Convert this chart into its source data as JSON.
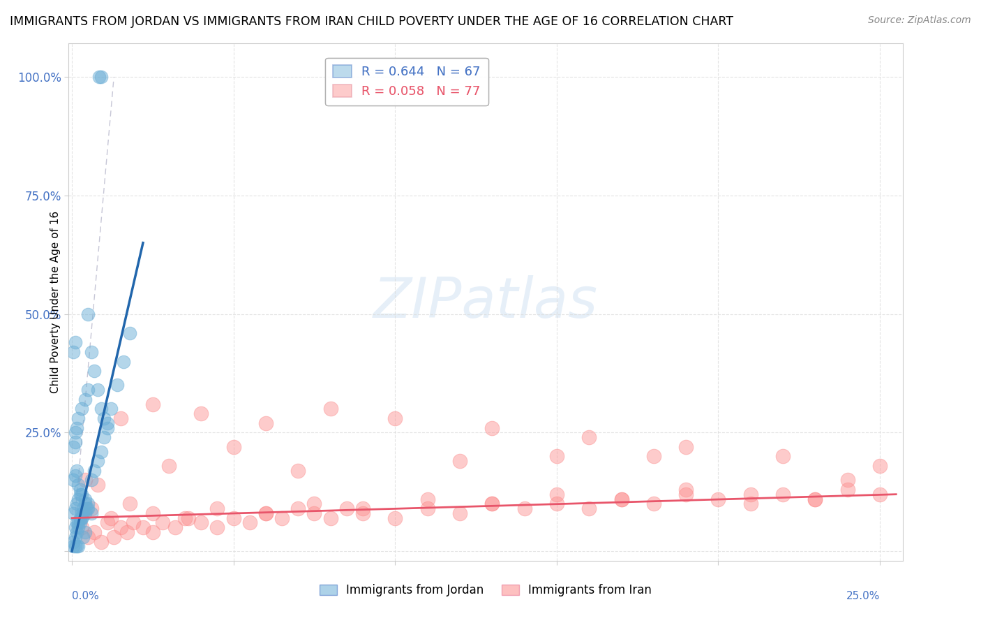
{
  "title": "IMMIGRANTS FROM JORDAN VS IMMIGRANTS FROM IRAN CHILD POVERTY UNDER THE AGE OF 16 CORRELATION CHART",
  "source": "Source: ZipAtlas.com",
  "ylabel": "Child Poverty Under the Age of 16",
  "jordan_color": "#6baed6",
  "iran_color": "#fc8d8d",
  "jordan_line_color": "#2166ac",
  "iran_line_color": "#e8556a",
  "jordan_R": 0.644,
  "jordan_N": 67,
  "iran_R": 0.058,
  "iran_N": 77,
  "legend_label_jordan": "Immigrants from Jordan",
  "legend_label_iran": "Immigrants from Iran",
  "watermark": "ZIPatlas",
  "xlim": [
    -0.001,
    0.257
  ],
  "ylim": [
    -0.02,
    1.07
  ],
  "xticks": [
    0.0,
    0.05,
    0.1,
    0.15,
    0.2,
    0.25
  ],
  "yticks": [
    0.0,
    0.25,
    0.5,
    0.75,
    1.0
  ],
  "ytick_labels": [
    "",
    "25.0%",
    "50.0%",
    "75.0%",
    "100.0%"
  ],
  "tick_color": "#4472c4",
  "jordan_scatter_x": [
    0.0005,
    0.001,
    0.0015,
    0.002,
    0.0025,
    0.003,
    0.0035,
    0.004,
    0.0005,
    0.001,
    0.0015,
    0.002,
    0.0025,
    0.003,
    0.0035,
    0.004,
    0.0005,
    0.001,
    0.0015,
    0.002,
    0.0025,
    0.003,
    0.004,
    0.005,
    0.006,
    0.0005,
    0.001,
    0.0005,
    0.001,
    0.0005,
    0.001,
    0.0015,
    0.002,
    0.001,
    0.0015,
    0.002,
    0.003,
    0.004,
    0.005,
    0.001,
    0.0015,
    0.002,
    0.0025,
    0.003,
    0.0035,
    0.004,
    0.0045,
    0.005,
    0.006,
    0.007,
    0.008,
    0.009,
    0.01,
    0.011,
    0.012,
    0.014,
    0.016,
    0.018,
    0.0085,
    0.009,
    0.005,
    0.006,
    0.007,
    0.008,
    0.009,
    0.01,
    0.011
  ],
  "jordan_scatter_y": [
    0.02,
    0.03,
    0.04,
    0.05,
    0.06,
    0.07,
    0.03,
    0.04,
    0.08,
    0.09,
    0.1,
    0.11,
    0.12,
    0.08,
    0.09,
    0.1,
    0.15,
    0.16,
    0.17,
    0.14,
    0.13,
    0.12,
    0.11,
    0.1,
    0.08,
    0.22,
    0.23,
    0.42,
    0.44,
    0.01,
    0.01,
    0.01,
    0.01,
    0.25,
    0.26,
    0.28,
    0.3,
    0.32,
    0.34,
    0.05,
    0.06,
    0.06,
    0.07,
    0.07,
    0.08,
    0.08,
    0.09,
    0.09,
    0.15,
    0.17,
    0.19,
    0.21,
    0.24,
    0.27,
    0.3,
    0.35,
    0.4,
    0.46,
    1.0,
    1.0,
    0.5,
    0.42,
    0.38,
    0.34,
    0.3,
    0.28,
    0.26
  ],
  "iran_scatter_x": [
    0.003,
    0.005,
    0.007,
    0.009,
    0.011,
    0.013,
    0.015,
    0.017,
    0.019,
    0.022,
    0.025,
    0.028,
    0.032,
    0.036,
    0.04,
    0.045,
    0.05,
    0.055,
    0.06,
    0.065,
    0.07,
    0.075,
    0.08,
    0.085,
    0.09,
    0.1,
    0.11,
    0.12,
    0.13,
    0.14,
    0.15,
    0.16,
    0.17,
    0.18,
    0.19,
    0.2,
    0.21,
    0.22,
    0.23,
    0.24,
    0.25,
    0.006,
    0.012,
    0.018,
    0.025,
    0.035,
    0.045,
    0.06,
    0.075,
    0.09,
    0.11,
    0.13,
    0.15,
    0.17,
    0.19,
    0.21,
    0.23,
    0.004,
    0.008,
    0.015,
    0.025,
    0.04,
    0.06,
    0.08,
    0.1,
    0.13,
    0.16,
    0.19,
    0.22,
    0.25,
    0.03,
    0.07,
    0.12,
    0.18,
    0.24,
    0.05,
    0.15
  ],
  "iran_scatter_y": [
    0.05,
    0.03,
    0.04,
    0.02,
    0.06,
    0.03,
    0.05,
    0.04,
    0.06,
    0.05,
    0.04,
    0.06,
    0.05,
    0.07,
    0.06,
    0.05,
    0.07,
    0.06,
    0.08,
    0.07,
    0.09,
    0.08,
    0.07,
    0.09,
    0.08,
    0.07,
    0.09,
    0.08,
    0.1,
    0.09,
    0.1,
    0.09,
    0.11,
    0.1,
    0.12,
    0.11,
    0.1,
    0.12,
    0.11,
    0.13,
    0.12,
    0.09,
    0.07,
    0.1,
    0.08,
    0.07,
    0.09,
    0.08,
    0.1,
    0.09,
    0.11,
    0.1,
    0.12,
    0.11,
    0.13,
    0.12,
    0.11,
    0.15,
    0.14,
    0.28,
    0.31,
    0.29,
    0.27,
    0.3,
    0.28,
    0.26,
    0.24,
    0.22,
    0.2,
    0.18,
    0.18,
    0.17,
    0.19,
    0.2,
    0.15,
    0.22,
    0.2
  ],
  "jordan_line_x0": 0.0,
  "jordan_line_x1": 0.022,
  "jordan_line_y0": 0.0,
  "jordan_line_y1": 0.65,
  "iran_line_x0": 0.0,
  "iran_line_x1": 0.255,
  "iran_line_y0": 0.07,
  "iran_line_y1": 0.12,
  "ref_line_x0": 0.0,
  "ref_line_x1": 0.013,
  "ref_line_y0": 0.0,
  "ref_line_y1": 1.0
}
